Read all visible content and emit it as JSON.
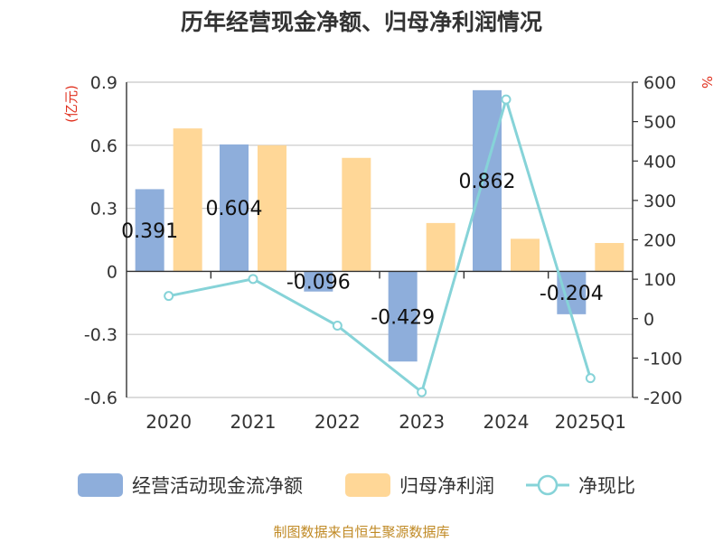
{
  "chart_data": {
    "type": "bar",
    "title": "历年经营现金净额、归母净利润情况",
    "categories": [
      "2020",
      "2021",
      "2022",
      "2023",
      "2024",
      "2025Q1"
    ],
    "left_axis": {
      "unit": "(亿元)",
      "min": -0.6,
      "max": 0.9,
      "ticks": [
        "-0.6",
        "-0.3",
        "0",
        "0.3",
        "0.6",
        "0.9"
      ]
    },
    "right_axis": {
      "unit": "%",
      "min": -200,
      "max": 600,
      "ticks": [
        "-200",
        "-100",
        "0",
        "100",
        "200",
        "300",
        "400",
        "500",
        "600"
      ]
    },
    "series": [
      {
        "name": "经营活动现金流净额",
        "type": "bar",
        "axis": "left",
        "color": "#8eaedb",
        "values": [
          0.391,
          0.604,
          -0.096,
          -0.429,
          0.862,
          -0.204
        ],
        "labels": [
          "0.391",
          "0.604",
          "-0.096",
          "-0.429",
          "0.862",
          "-0.204"
        ]
      },
      {
        "name": "归母净利润",
        "type": "bar",
        "axis": "left",
        "color": "#ffd797",
        "values": [
          0.68,
          0.6,
          0.54,
          0.23,
          0.155,
          0.135
        ]
      },
      {
        "name": "净现比",
        "type": "line",
        "axis": "right",
        "color": "#86d3d8",
        "values": [
          57.5,
          100.7,
          -17.8,
          -186.5,
          556.1,
          -151.1
        ]
      }
    ],
    "grid": true,
    "legend_position": "bottom"
  },
  "footer": {
    "source": "制图数据来自恒生聚源数据库"
  },
  "colors": {
    "title": "#333333",
    "axis_text": "#333333",
    "left_unit": "#e0301e",
    "right_unit": "#e0301e",
    "gridline": "#c8c8c8",
    "source": "#c08a25"
  }
}
